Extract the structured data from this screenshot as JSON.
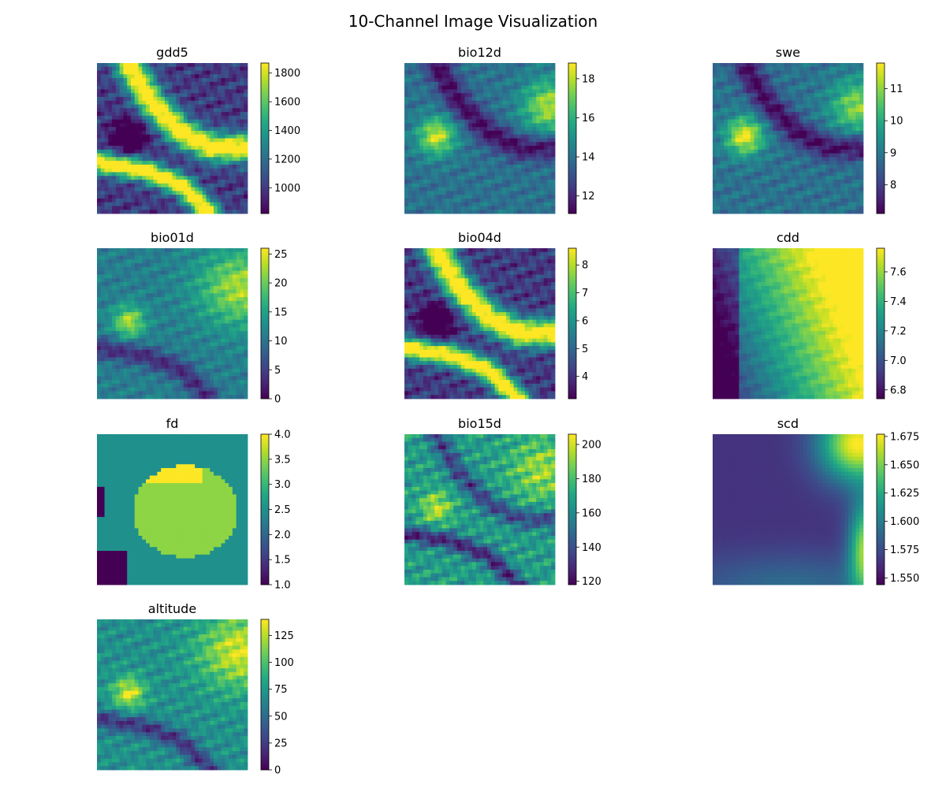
{
  "figure": {
    "title": "10-Channel Image Visualization"
  },
  "colors": {
    "colormap": "viridis",
    "background": "#ffffff",
    "text": "#000000"
  },
  "chart_data": [
    {
      "type": "heatmap",
      "title": "gdd5",
      "grid_size": [
        40,
        40
      ],
      "colorbar_range": [
        820,
        1870
      ],
      "colorbar_ticks": [
        1000,
        1200,
        1400,
        1600,
        1800
      ],
      "colorbar_tick_labels": [
        "1000",
        "1200",
        "1400",
        "1600",
        "1800"
      ],
      "axes": "off"
    },
    {
      "type": "heatmap",
      "title": "bio12d",
      "grid_size": [
        40,
        40
      ],
      "colorbar_range": [
        11.1,
        18.8
      ],
      "colorbar_ticks": [
        12,
        14,
        16,
        18
      ],
      "colorbar_tick_labels": [
        "12",
        "14",
        "16",
        "18"
      ],
      "axes": "off"
    },
    {
      "type": "heatmap",
      "title": "swe",
      "grid_size": [
        40,
        40
      ],
      "colorbar_range": [
        7.1,
        11.8
      ],
      "colorbar_ticks": [
        8,
        9,
        10,
        11
      ],
      "colorbar_tick_labels": [
        "8",
        "9",
        "10",
        "11"
      ],
      "axes": "off"
    },
    {
      "type": "heatmap",
      "title": "bio01d",
      "grid_size": [
        40,
        40
      ],
      "colorbar_range": [
        0,
        26
      ],
      "colorbar_ticks": [
        0,
        5,
        10,
        15,
        20,
        25
      ],
      "colorbar_tick_labels": [
        "0",
        "5",
        "10",
        "15",
        "20",
        "25"
      ],
      "axes": "off"
    },
    {
      "type": "heatmap",
      "title": "bio04d",
      "grid_size": [
        40,
        40
      ],
      "colorbar_range": [
        3.2,
        8.6
      ],
      "colorbar_ticks": [
        4,
        5,
        6,
        7,
        8
      ],
      "colorbar_tick_labels": [
        "4",
        "5",
        "6",
        "7",
        "8"
      ],
      "axes": "off"
    },
    {
      "type": "heatmap",
      "title": "cdd",
      "grid_size": [
        40,
        40
      ],
      "colorbar_range": [
        6.74,
        7.76
      ],
      "colorbar_ticks": [
        6.8,
        7.0,
        7.2,
        7.4,
        7.6
      ],
      "colorbar_tick_labels": [
        "6.8",
        "7.0",
        "7.2",
        "7.4",
        "7.6"
      ],
      "axes": "off"
    },
    {
      "type": "heatmap",
      "title": "fd",
      "grid_size": [
        40,
        40
      ],
      "colorbar_range": [
        1.0,
        4.0
      ],
      "colorbar_ticks": [
        1.0,
        1.5,
        2.0,
        2.5,
        3.0,
        3.5,
        4.0
      ],
      "colorbar_tick_labels": [
        "1.0",
        "1.5",
        "2.0",
        "2.5",
        "3.0",
        "3.5",
        "4.0"
      ],
      "axes": "off"
    },
    {
      "type": "heatmap",
      "title": "bio15d",
      "grid_size": [
        40,
        40
      ],
      "colorbar_range": [
        118,
        206
      ],
      "colorbar_ticks": [
        120,
        140,
        160,
        180,
        200
      ],
      "colorbar_tick_labels": [
        "120",
        "140",
        "160",
        "180",
        "200"
      ],
      "axes": "off"
    },
    {
      "type": "heatmap",
      "title": "scd",
      "grid_size": [
        40,
        40
      ],
      "colorbar_range": [
        1.544,
        1.677
      ],
      "colorbar_ticks": [
        1.55,
        1.575,
        1.6,
        1.625,
        1.65,
        1.675
      ],
      "colorbar_tick_labels": [
        "1.550",
        "1.575",
        "1.600",
        "1.625",
        "1.650",
        "1.675"
      ],
      "axes": "off"
    },
    {
      "type": "heatmap",
      "title": "altitude",
      "grid_size": [
        40,
        40
      ],
      "colorbar_range": [
        0,
        140
      ],
      "colorbar_ticks": [
        0,
        25,
        50,
        75,
        100,
        125
      ],
      "colorbar_tick_labels": [
        "0",
        "25",
        "50",
        "75",
        "100",
        "125"
      ],
      "axes": "off"
    }
  ]
}
